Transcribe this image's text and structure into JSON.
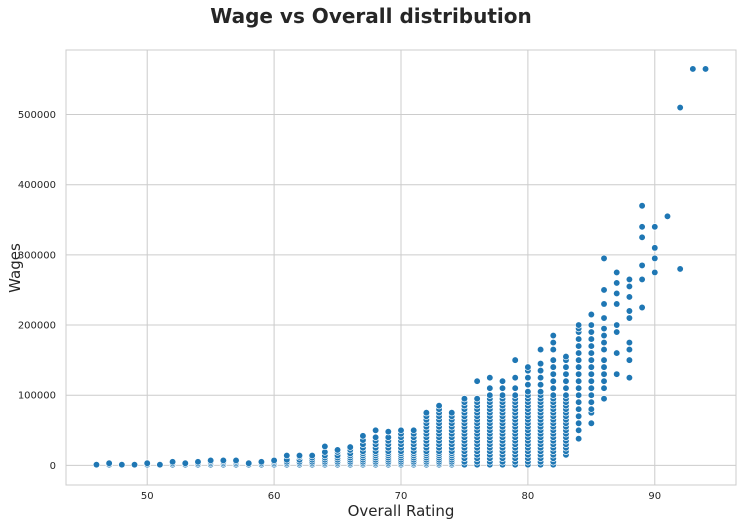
{
  "chart_data": {
    "type": "scatter",
    "title": "Wage vs Overall distribution",
    "xlabel": "Overall Rating",
    "ylabel": "Wages",
    "xlim": [
      43.6,
      96.4
    ],
    "ylim": [
      -28000,
      592000
    ],
    "xticks": [
      50,
      60,
      70,
      80,
      90
    ],
    "yticks": [
      0,
      100000,
      200000,
      300000,
      400000,
      500000
    ],
    "grid": true,
    "point_color": "#1f77b4",
    "groups": [
      {
        "x": 46,
        "y": [
          1000
        ]
      },
      {
        "x": 47,
        "y": [
          1000,
          3000
        ]
      },
      {
        "x": 48,
        "y": [
          1000
        ]
      },
      {
        "x": 49,
        "y": [
          1000
        ]
      },
      {
        "x": 50,
        "y": [
          1000,
          3000
        ]
      },
      {
        "x": 51,
        "y": [
          1000
        ]
      },
      {
        "x": 52,
        "y": [
          1000,
          3000,
          5000
        ]
      },
      {
        "x": 53,
        "y": [
          1000,
          3000
        ]
      },
      {
        "x": 54,
        "y": [
          1000,
          3000,
          5000
        ]
      },
      {
        "x": 55,
        "y": [
          1000,
          3000,
          5000,
          7000
        ]
      },
      {
        "x": 56,
        "y": [
          1000,
          3000,
          5000,
          7000
        ]
      },
      {
        "x": 57,
        "y": [
          1000,
          3000,
          5000,
          7000
        ]
      },
      {
        "x": 58,
        "y": [
          1000,
          3000
        ]
      },
      {
        "x": 59,
        "y": [
          1000,
          3000,
          5000
        ]
      },
      {
        "x": 60,
        "y": [
          1000,
          3000,
          5000,
          7000
        ]
      },
      {
        "x": 61,
        "y": [
          1000,
          3000,
          5000,
          8000,
          14000
        ]
      },
      {
        "x": 62,
        "y": [
          1000,
          3000,
          5000,
          8000,
          12000,
          14000
        ]
      },
      {
        "x": 63,
        "y": [
          1000,
          3000,
          5000,
          8000,
          11000,
          14000
        ]
      },
      {
        "x": 64,
        "y": [
          1000,
          3000,
          5000,
          8000,
          11000,
          14000,
          19000,
          27000
        ]
      },
      {
        "x": 65,
        "y": [
          1000,
          3000,
          5000,
          8000,
          11000,
          14000,
          19000,
          22000
        ]
      },
      {
        "x": 66,
        "y": [
          1000,
          3000,
          5000,
          8000,
          11000,
          14000,
          17000,
          22000,
          26000
        ]
      },
      {
        "x": 67,
        "y": [
          1000,
          3000,
          5000,
          8000,
          11000,
          14000,
          17000,
          20000,
          25000,
          30000,
          36000,
          42000
        ]
      },
      {
        "x": 68,
        "y": [
          1000,
          3000,
          5000,
          8000,
          11000,
          14000,
          17000,
          20000,
          25000,
          30000,
          35000,
          40000,
          50000
        ]
      },
      {
        "x": 69,
        "y": [
          1000,
          3000,
          5000,
          8000,
          11000,
          14000,
          17000,
          20000,
          25000,
          30000,
          35000,
          40000,
          48000
        ]
      },
      {
        "x": 70,
        "y": [
          1000,
          3000,
          5000,
          8000,
          11000,
          14000,
          17000,
          20000,
          25000,
          30000,
          35000,
          40000,
          45000,
          50000
        ]
      },
      {
        "x": 71,
        "y": [
          1000,
          3000,
          5000,
          8000,
          11000,
          14000,
          17000,
          20000,
          25000,
          30000,
          35000,
          40000,
          45000,
          50000
        ]
      },
      {
        "x": 72,
        "y": [
          1000,
          3000,
          5000,
          8000,
          11000,
          14000,
          17000,
          20000,
          25000,
          30000,
          35000,
          40000,
          45000,
          50000,
          55000,
          60000,
          65000,
          70000,
          75000
        ]
      },
      {
        "x": 73,
        "y": [
          1000,
          3000,
          5000,
          8000,
          11000,
          14000,
          17000,
          20000,
          25000,
          30000,
          35000,
          40000,
          45000,
          50000,
          55000,
          60000,
          65000,
          70000,
          75000,
          80000,
          85000
        ]
      },
      {
        "x": 74,
        "y": [
          1000,
          3000,
          5000,
          8000,
          11000,
          14000,
          17000,
          20000,
          25000,
          30000,
          35000,
          40000,
          45000,
          50000,
          55000,
          60000,
          65000,
          70000,
          75000
        ]
      },
      {
        "x": 75,
        "y": [
          1000,
          5000,
          10000,
          15000,
          20000,
          25000,
          30000,
          35000,
          40000,
          45000,
          50000,
          55000,
          60000,
          65000,
          70000,
          75000,
          80000,
          85000,
          90000,
          95000
        ]
      },
      {
        "x": 76,
        "y": [
          1000,
          5000,
          10000,
          15000,
          20000,
          25000,
          30000,
          35000,
          40000,
          45000,
          50000,
          55000,
          60000,
          65000,
          70000,
          75000,
          80000,
          85000,
          90000,
          95000,
          120000
        ]
      },
      {
        "x": 77,
        "y": [
          1000,
          5000,
          10000,
          15000,
          20000,
          25000,
          30000,
          35000,
          40000,
          45000,
          50000,
          55000,
          60000,
          65000,
          70000,
          75000,
          80000,
          85000,
          90000,
          95000,
          100000,
          110000,
          125000
        ]
      },
      {
        "x": 78,
        "y": [
          1000,
          5000,
          10000,
          15000,
          20000,
          25000,
          30000,
          35000,
          40000,
          45000,
          50000,
          55000,
          60000,
          65000,
          70000,
          75000,
          80000,
          85000,
          90000,
          95000,
          100000,
          110000,
          120000
        ]
      },
      {
        "x": 79,
        "y": [
          1000,
          5000,
          10000,
          15000,
          20000,
          25000,
          30000,
          35000,
          40000,
          45000,
          50000,
          55000,
          60000,
          65000,
          70000,
          75000,
          80000,
          85000,
          90000,
          95000,
          100000,
          110000,
          125000,
          150000
        ]
      },
      {
        "x": 80,
        "y": [
          1000,
          5000,
          10000,
          15000,
          20000,
          25000,
          30000,
          35000,
          40000,
          45000,
          50000,
          55000,
          60000,
          65000,
          70000,
          75000,
          80000,
          85000,
          90000,
          95000,
          100000,
          105000,
          115000,
          125000,
          135000,
          140000
        ]
      },
      {
        "x": 81,
        "y": [
          1000,
          5000,
          10000,
          15000,
          20000,
          25000,
          30000,
          35000,
          40000,
          45000,
          50000,
          55000,
          60000,
          65000,
          70000,
          75000,
          80000,
          85000,
          90000,
          95000,
          100000,
          105000,
          115000,
          125000,
          135000,
          145000,
          165000
        ]
      },
      {
        "x": 82,
        "y": [
          1000,
          5000,
          10000,
          15000,
          20000,
          25000,
          30000,
          35000,
          40000,
          45000,
          50000,
          55000,
          60000,
          65000,
          70000,
          75000,
          80000,
          85000,
          90000,
          95000,
          100000,
          110000,
          120000,
          130000,
          140000,
          150000,
          165000,
          175000,
          185000
        ]
      },
      {
        "x": 83,
        "y": [
          15000,
          20000,
          25000,
          30000,
          35000,
          40000,
          45000,
          50000,
          55000,
          60000,
          65000,
          70000,
          75000,
          80000,
          85000,
          90000,
          95000,
          100000,
          110000,
          120000,
          130000,
          140000,
          150000,
          155000
        ]
      },
      {
        "x": 84,
        "y": [
          38000,
          50000,
          60000,
          70000,
          80000,
          90000,
          100000,
          110000,
          120000,
          130000,
          140000,
          150000,
          160000,
          170000,
          180000,
          190000,
          195000,
          200000
        ]
      },
      {
        "x": 85,
        "y": [
          60000,
          75000,
          80000,
          90000,
          100000,
          110000,
          120000,
          130000,
          140000,
          150000,
          160000,
          170000,
          180000,
          190000,
          200000,
          215000
        ]
      },
      {
        "x": 86,
        "y": [
          95000,
          110000,
          120000,
          130000,
          140000,
          150000,
          165000,
          175000,
          185000,
          195000,
          210000,
          230000,
          250000,
          295000
        ]
      },
      {
        "x": 87,
        "y": [
          130000,
          160000,
          190000,
          200000,
          230000,
          245000,
          260000,
          275000
        ]
      },
      {
        "x": 88,
        "y": [
          125000,
          150000,
          165000,
          175000,
          210000,
          220000,
          240000,
          255000,
          265000
        ]
      },
      {
        "x": 89,
        "y": [
          225000,
          265000,
          285000,
          325000,
          340000,
          370000
        ]
      },
      {
        "x": 90,
        "y": [
          275000,
          295000,
          310000,
          340000
        ]
      },
      {
        "x": 91,
        "y": [
          355000
        ]
      },
      {
        "x": 92,
        "y": [
          280000,
          510000
        ]
      },
      {
        "x": 93,
        "y": [
          565000
        ]
      },
      {
        "x": 94,
        "y": [
          565000
        ]
      }
    ]
  }
}
